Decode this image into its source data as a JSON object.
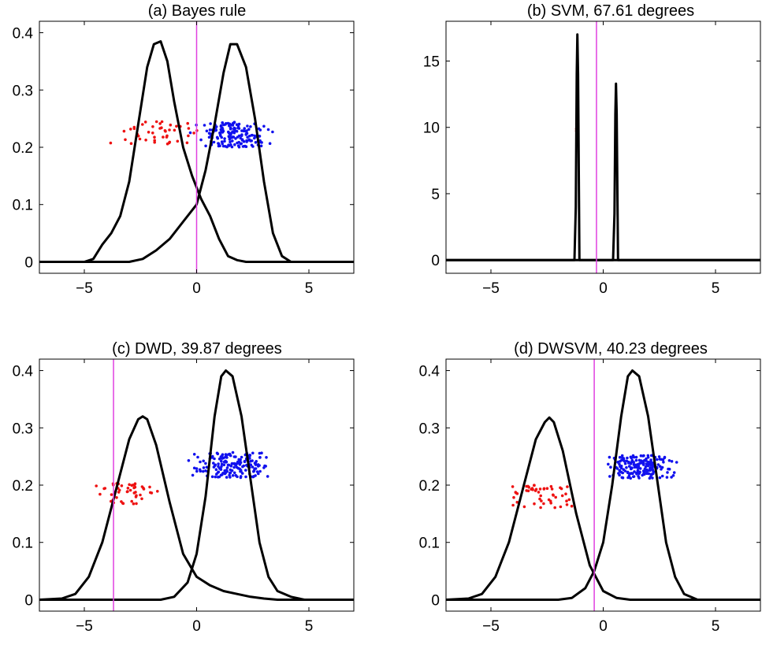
{
  "colors": {
    "class1_points": "#ee1111",
    "class2_points": "#1111ee",
    "density_line": "#000000",
    "boundary_line": "#e040e0"
  },
  "chart_data": [
    {
      "type": "line",
      "title": "(a) Bayes rule",
      "xlim": [
        -7,
        7
      ],
      "ylim": [
        -0.02,
        0.42
      ],
      "xticks": [
        -5,
        0,
        5
      ],
      "xtick_labels": [
        "−5",
        "0",
        "5"
      ],
      "yticks": [
        0,
        0.1,
        0.2,
        0.3,
        0.4
      ],
      "ytick_labels": [
        "0",
        "0.1",
        "0.2",
        "0.3",
        "0.4"
      ],
      "boundary_x": 0.0,
      "densities": [
        {
          "x": [
            -7,
            -5,
            -4.6,
            -4.2,
            -3.8,
            -3.4,
            -3.0,
            -2.6,
            -2.2,
            -1.9,
            -1.6,
            -1.3,
            -1.0,
            -0.6,
            -0.2,
            0.2,
            0.6,
            1.0,
            1.4,
            1.8,
            2.2,
            2.6,
            3.0,
            7
          ],
          "y": [
            0,
            0,
            0.005,
            0.03,
            0.05,
            0.08,
            0.14,
            0.24,
            0.34,
            0.38,
            0.385,
            0.35,
            0.28,
            0.2,
            0.15,
            0.11,
            0.08,
            0.04,
            0.01,
            0.003,
            0,
            0,
            0,
            0
          ]
        },
        {
          "x": [
            -7,
            -3.0,
            -2.4,
            -1.8,
            -1.2,
            -0.6,
            0.0,
            0.4,
            0.8,
            1.2,
            1.5,
            1.8,
            2.2,
            2.6,
            3.0,
            3.4,
            3.8,
            4.2,
            7
          ],
          "y": [
            0,
            0,
            0.005,
            0.02,
            0.04,
            0.07,
            0.1,
            0.16,
            0.24,
            0.33,
            0.38,
            0.38,
            0.34,
            0.25,
            0.14,
            0.05,
            0.01,
            0,
            0
          ]
        }
      ],
      "scatter": [
        {
          "center_y": 0.225,
          "spread_y": 0.02,
          "x_range": [
            -4.3,
            1.2
          ],
          "count": 45,
          "color": "#ee1111"
        },
        {
          "center_y": 0.222,
          "spread_y": 0.022,
          "x_range": [
            -0.6,
            3.8
          ],
          "count": 170,
          "color": "#1111ee"
        }
      ]
    },
    {
      "type": "line",
      "title": "(b) SVM, 67.61 degrees",
      "xlim": [
        -7,
        7
      ],
      "ylim": [
        -1,
        18
      ],
      "xticks": [
        -5,
        0,
        5
      ],
      "xtick_labels": [
        "−5",
        "0",
        "5"
      ],
      "yticks": [
        0,
        5,
        10,
        15
      ],
      "ytick_labels": [
        "0",
        "5",
        "10",
        "15"
      ],
      "boundary_x": -0.3,
      "densities": [
        {
          "x": [
            -7,
            -1.28,
            -1.22,
            -1.18,
            -1.15,
            -1.12,
            -1.06,
            7
          ],
          "y": [
            0,
            0,
            4,
            14,
            17,
            14,
            0,
            0
          ]
        },
        {
          "x": [
            -7,
            0.44,
            0.5,
            0.54,
            0.57,
            0.6,
            0.66,
            7
          ],
          "y": [
            0,
            0,
            3.5,
            11,
            13.3,
            11,
            0,
            0
          ]
        }
      ],
      "scatter": [
        {
          "center_y": 9.8,
          "spread_y": 0.9,
          "x_range": [
            -1.2,
            -1.12
          ],
          "count": 30,
          "color": "#ee1111"
        },
        {
          "center_y": 7.8,
          "spread_y": 0.6,
          "x_range": [
            0.52,
            0.6
          ],
          "count": 40,
          "color": "#1111ee"
        }
      ]
    },
    {
      "type": "line",
      "title": "(c) DWD, 39.87 degrees",
      "xlim": [
        -7,
        7
      ],
      "ylim": [
        -0.02,
        0.42
      ],
      "xticks": [
        -5,
        0,
        5
      ],
      "xtick_labels": [
        "−5",
        "0",
        "5"
      ],
      "yticks": [
        0,
        0.1,
        0.2,
        0.3,
        0.4
      ],
      "ytick_labels": [
        "0",
        "0.1",
        "0.2",
        "0.3",
        "0.4"
      ],
      "boundary_x": -3.7,
      "densities": [
        {
          "x": [
            -7,
            -6.0,
            -5.4,
            -4.8,
            -4.2,
            -3.6,
            -3.0,
            -2.6,
            -2.4,
            -2.2,
            -1.8,
            -1.2,
            -0.6,
            0.0,
            0.6,
            1.2,
            1.8,
            2.4,
            3.0,
            3.6,
            4.2,
            4.8,
            7
          ],
          "y": [
            0,
            0.002,
            0.01,
            0.04,
            0.1,
            0.19,
            0.28,
            0.315,
            0.32,
            0.315,
            0.27,
            0.17,
            0.08,
            0.04,
            0.025,
            0.015,
            0.01,
            0.005,
            0.002,
            0,
            0,
            0,
            0
          ]
        },
        {
          "x": [
            -7,
            -1.6,
            -1.0,
            -0.4,
            0.0,
            0.4,
            0.8,
            1.1,
            1.3,
            1.6,
            2.0,
            2.4,
            2.8,
            3.2,
            3.6,
            4.2,
            4.8,
            7
          ],
          "y": [
            0,
            0,
            0.005,
            0.03,
            0.08,
            0.18,
            0.32,
            0.39,
            0.4,
            0.39,
            0.32,
            0.21,
            0.1,
            0.04,
            0.015,
            0.005,
            0,
            0
          ]
        }
      ],
      "scatter": [
        {
          "center_y": 0.185,
          "spread_y": 0.018,
          "x_range": [
            -5.2,
            -1.3
          ],
          "count": 50,
          "color": "#ee1111"
        },
        {
          "center_y": 0.235,
          "spread_y": 0.022,
          "x_range": [
            -0.9,
            4.0
          ],
          "count": 180,
          "color": "#1111ee"
        }
      ]
    },
    {
      "type": "line",
      "title": "(d) DWSVM, 40.23 degrees",
      "xlim": [
        -7,
        7
      ],
      "ylim": [
        -0.02,
        0.42
      ],
      "xticks": [
        -5,
        0,
        5
      ],
      "xtick_labels": [
        "−5",
        "0",
        "5"
      ],
      "yticks": [
        0,
        0.1,
        0.2,
        0.3,
        0.4
      ],
      "ytick_labels": [
        "0",
        "0.1",
        "0.2",
        "0.3",
        "0.4"
      ],
      "boundary_x": -0.4,
      "densities": [
        {
          "x": [
            -7,
            -6.0,
            -5.4,
            -4.8,
            -4.2,
            -3.6,
            -3.0,
            -2.6,
            -2.4,
            -2.2,
            -1.8,
            -1.2,
            -0.6,
            0.0,
            0.6,
            1.2,
            1.8,
            2.4,
            7
          ],
          "y": [
            0,
            0.002,
            0.01,
            0.04,
            0.1,
            0.19,
            0.28,
            0.31,
            0.318,
            0.31,
            0.26,
            0.15,
            0.06,
            0.015,
            0.003,
            0,
            0,
            0,
            0
          ]
        },
        {
          "x": [
            -7,
            -2.0,
            -1.4,
            -0.8,
            -0.4,
            0.0,
            0.4,
            0.8,
            1.1,
            1.3,
            1.6,
            2.0,
            2.4,
            2.8,
            3.2,
            3.6,
            4.2,
            7
          ],
          "y": [
            0,
            0,
            0.003,
            0.02,
            0.05,
            0.1,
            0.2,
            0.32,
            0.39,
            0.4,
            0.39,
            0.32,
            0.21,
            0.1,
            0.04,
            0.01,
            0,
            0
          ]
        }
      ],
      "scatter": [
        {
          "center_y": 0.18,
          "spread_y": 0.02,
          "x_range": [
            -5.0,
            -0.5
          ],
          "count": 50,
          "color": "#ee1111"
        },
        {
          "center_y": 0.232,
          "spread_y": 0.02,
          "x_range": [
            -0.4,
            3.6
          ],
          "count": 180,
          "color": "#1111ee"
        }
      ]
    }
  ]
}
